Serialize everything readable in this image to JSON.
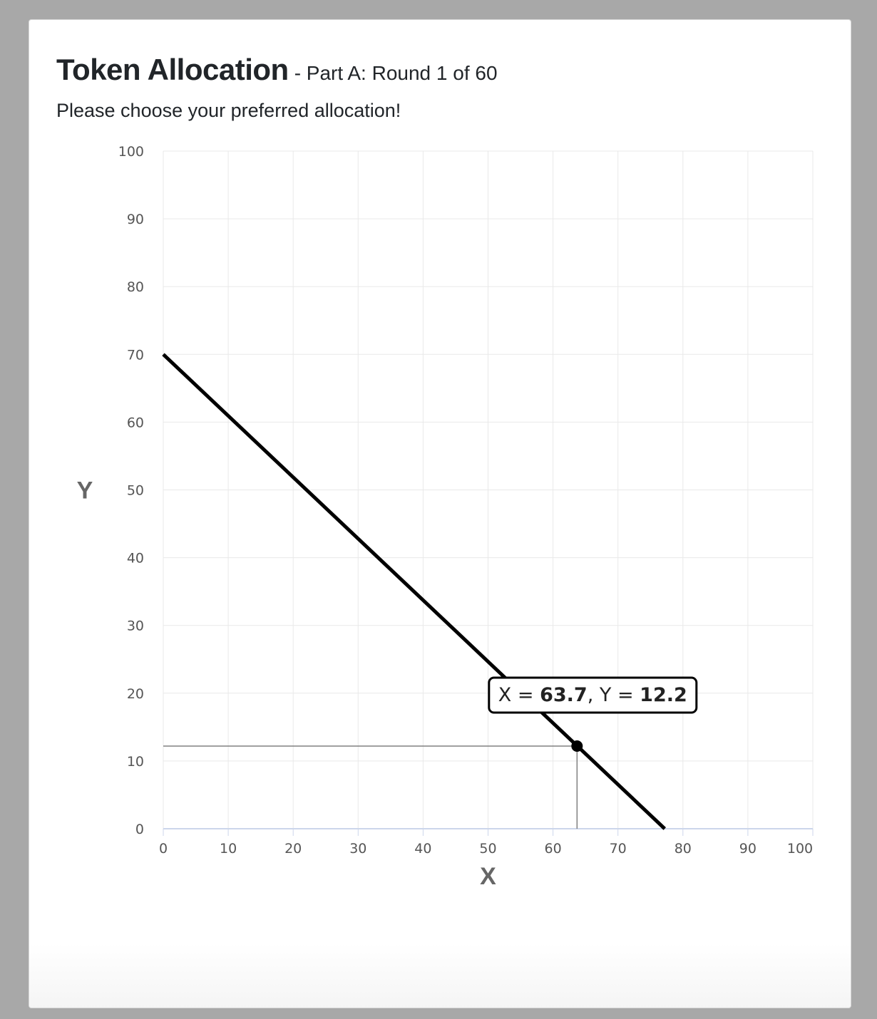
{
  "header": {
    "title": "Token Allocation",
    "subtitle": "- Part A: Round 1 of 60"
  },
  "instruction": "Please choose your preferred allocation!",
  "colors": {
    "line": "#000000",
    "grid": "#e9e9e9",
    "axis": "#ccd6eb",
    "guide": "#808080"
  },
  "chart_data": {
    "type": "line",
    "xlabel": "X",
    "ylabel": "Y",
    "xlim": [
      0,
      100
    ],
    "ylim": [
      0,
      100
    ],
    "x_ticks": [
      0,
      10,
      20,
      30,
      40,
      50,
      60,
      70,
      80,
      90,
      100
    ],
    "y_ticks": [
      0,
      10,
      20,
      30,
      40,
      50,
      60,
      70,
      80,
      90,
      100
    ],
    "grid": true,
    "series": [
      {
        "x": [
          0,
          77.2
        ],
        "y": [
          70,
          0
        ]
      }
    ],
    "selected_point": {
      "x": 63.7,
      "y": 12.2
    },
    "tooltip": {
      "x_label": "X = ",
      "x_value": "63.7",
      "separator": ", ",
      "y_label": "Y = ",
      "y_value": "12.2"
    }
  }
}
